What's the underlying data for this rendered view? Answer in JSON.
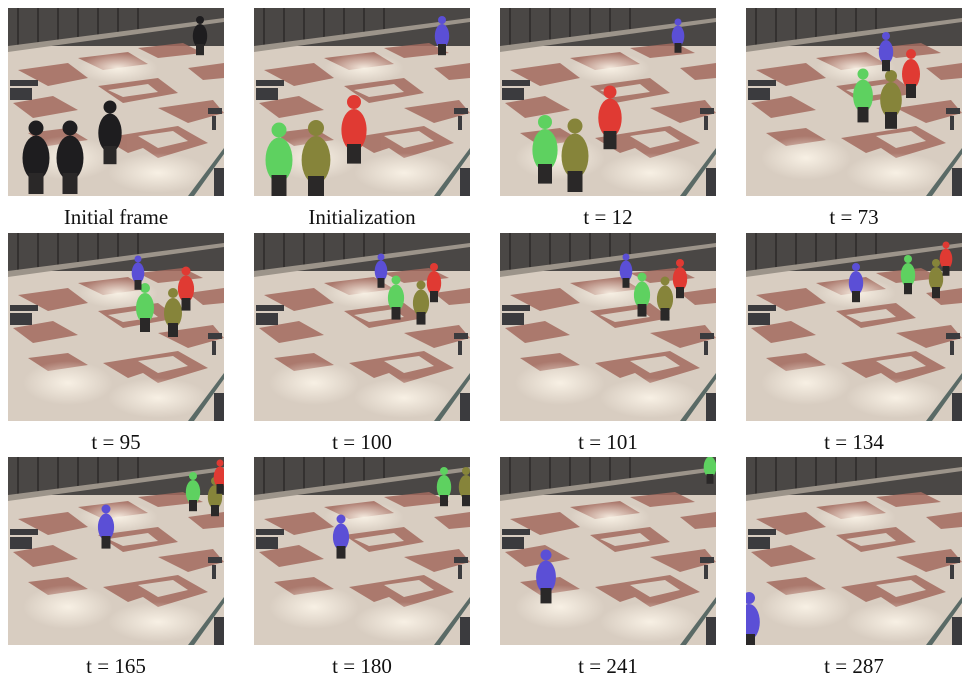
{
  "figure": {
    "panels": [
      {
        "caption": "Initial frame"
      },
      {
        "caption": "Initialization"
      },
      {
        "caption": "t = 12"
      },
      {
        "caption": "t = 73"
      },
      {
        "caption": "t = 95"
      },
      {
        "caption": "t = 100"
      },
      {
        "caption": "t = 101"
      },
      {
        "caption": "t = 134"
      },
      {
        "caption": "t = 165"
      },
      {
        "caption": "t = 180"
      },
      {
        "caption": "t = 241"
      },
      {
        "caption": "t = 287"
      }
    ]
  }
}
